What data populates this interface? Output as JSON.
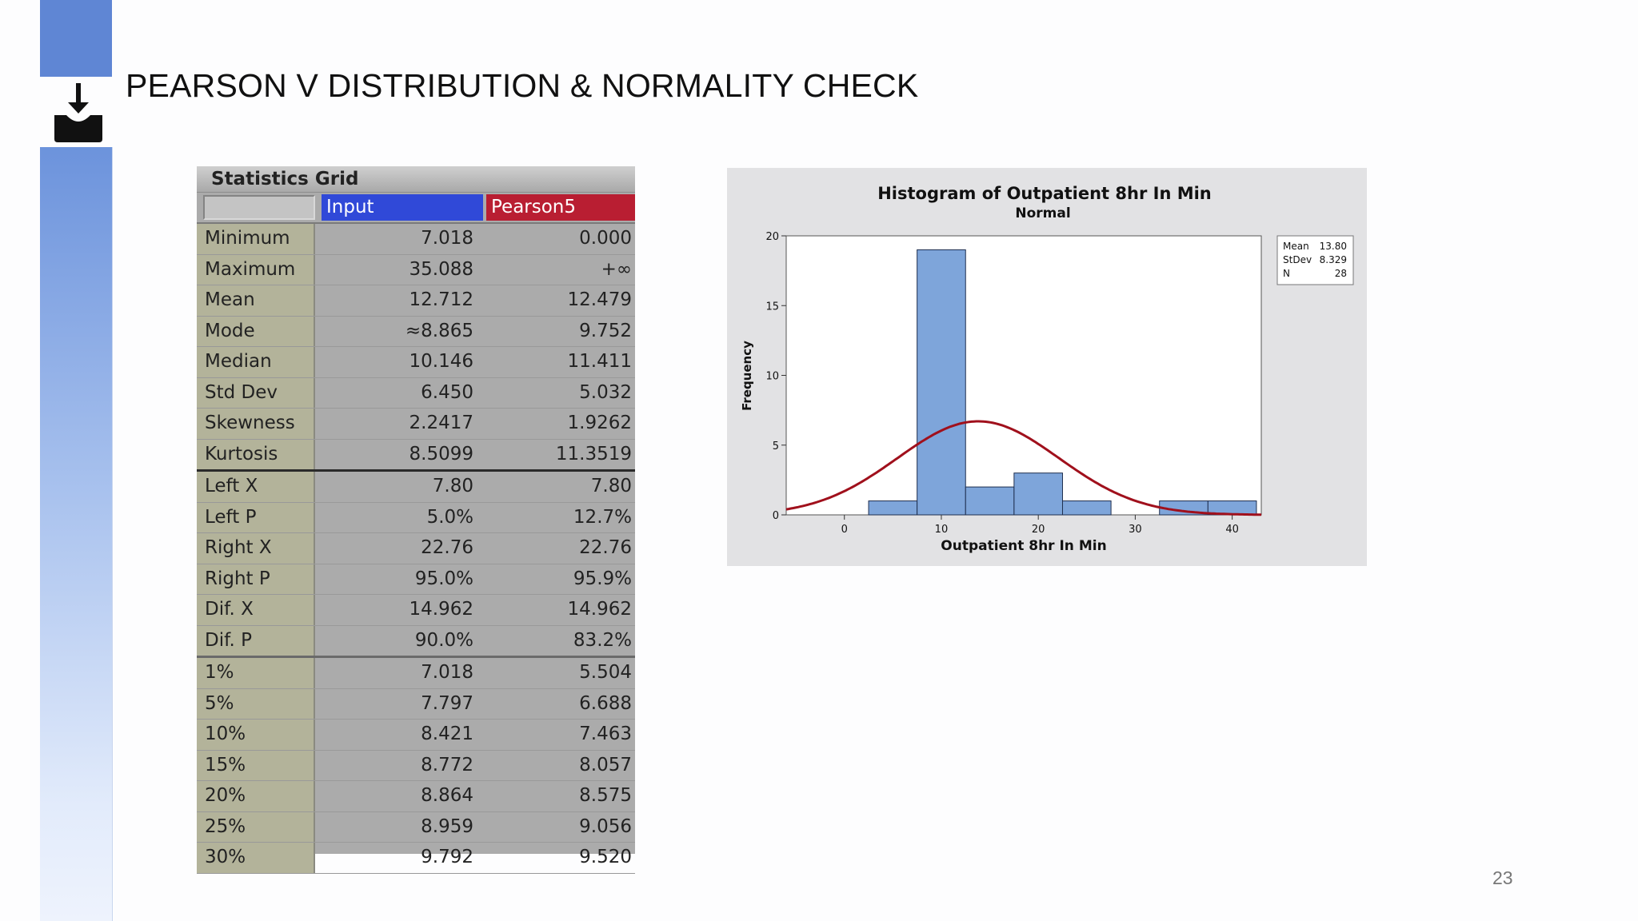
{
  "slide": {
    "title": "PEARSON V DISTRIBUTION & NORMALITY CHECK",
    "page_number": "23",
    "download_icon": "download-tray-icon",
    "accent_color": "#5f86d4"
  },
  "stats_grid": {
    "title": "Statistics Grid",
    "col_input": "Input",
    "col_pearson": "Pearson5",
    "input_color": "#3049d8",
    "pearson_color": "#b91e32",
    "rows": [
      {
        "label": "Minimum",
        "input": "7.018",
        "pearson": "0.000"
      },
      {
        "label": "Maximum",
        "input": "35.088",
        "pearson": "+∞"
      },
      {
        "label": "Mean",
        "input": "12.712",
        "pearson": "12.479"
      },
      {
        "label": "Mode",
        "input": "≈8.865",
        "pearson": "9.752"
      },
      {
        "label": "Median",
        "input": "10.146",
        "pearson": "11.411"
      },
      {
        "label": "Std Dev",
        "input": "6.450",
        "pearson": "5.032"
      },
      {
        "label": "Skewness",
        "input": "2.2417",
        "pearson": "1.9262"
      },
      {
        "label": "Kurtosis",
        "input": "8.5099",
        "pearson": "11.3519"
      },
      {
        "label": "Left X",
        "input": "7.80",
        "pearson": "7.80"
      },
      {
        "label": "Left P",
        "input": "5.0%",
        "pearson": "12.7%"
      },
      {
        "label": "Right X",
        "input": "22.76",
        "pearson": "22.76"
      },
      {
        "label": "Right P",
        "input": "95.0%",
        "pearson": "95.9%"
      },
      {
        "label": "Dif. X",
        "input": "14.962",
        "pearson": "14.962"
      },
      {
        "label": "Dif. P",
        "input": "90.0%",
        "pearson": "83.2%"
      },
      {
        "label": "1%",
        "input": "7.018",
        "pearson": "5.504"
      },
      {
        "label": "5%",
        "input": "7.797",
        "pearson": "6.688"
      },
      {
        "label": "10%",
        "input": "8.421",
        "pearson": "7.463"
      },
      {
        "label": "15%",
        "input": "8.772",
        "pearson": "8.057"
      },
      {
        "label": "20%",
        "input": "8.864",
        "pearson": "8.575"
      },
      {
        "label": "25%",
        "input": "8.959",
        "pearson": "9.056"
      },
      {
        "label": "30%",
        "input": "9.792",
        "pearson": "9.520"
      }
    ]
  },
  "chart_data": {
    "type": "bar",
    "title": "Histogram of Outpatient 8hr In Min",
    "subtitle": "Normal",
    "xlabel": "Outpatient 8hr In Min",
    "ylabel": "Frequency",
    "bin_width": 5,
    "bin_centers": [
      5,
      10,
      15,
      20,
      25,
      30,
      35,
      40
    ],
    "values": [
      1,
      19,
      2,
      3,
      1,
      0,
      1,
      1
    ],
    "xlim": [
      -6,
      43
    ],
    "ylim": [
      0,
      20
    ],
    "xticks": [
      0,
      10,
      20,
      30,
      40
    ],
    "yticks": [
      0,
      5,
      10,
      15,
      20
    ],
    "bar_color": "#7ea5da",
    "fit_curve": {
      "type": "normal",
      "mean": 13.8,
      "stdev": 8.329,
      "n": 28,
      "color": "#a0101c"
    },
    "legend": {
      "placement": "top-right",
      "entries": [
        {
          "label": "Mean",
          "value": "13.80"
        },
        {
          "label": "StDev",
          "value": "8.329"
        },
        {
          "label": "N",
          "value": "28"
        }
      ]
    }
  }
}
